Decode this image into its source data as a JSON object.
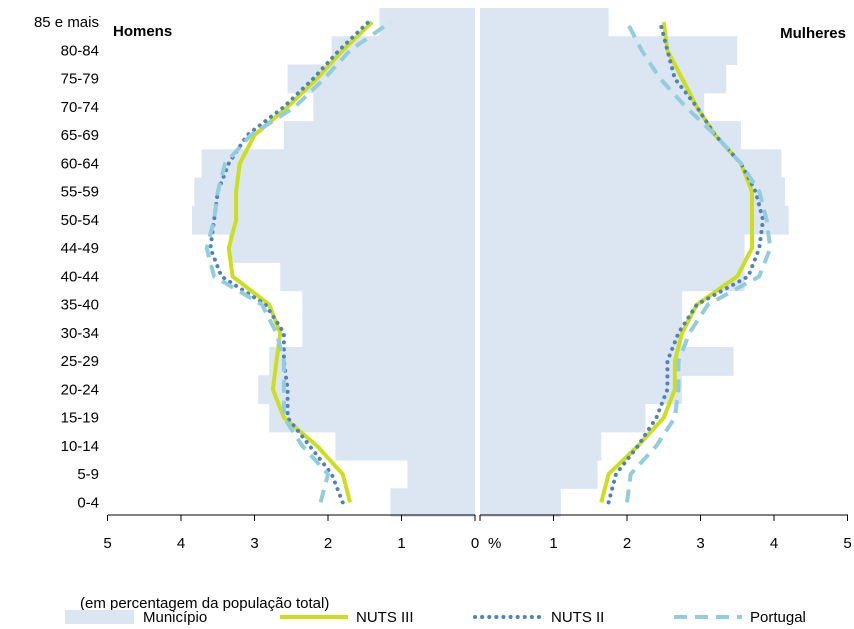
{
  "chart_data": {
    "type": "population-pyramid",
    "age_groups": [
      "0-4",
      "5-9",
      "10-14",
      "15-19",
      "20-24",
      "25-29",
      "30-34",
      "35-40",
      "40-44",
      "44-49",
      "50-54",
      "55-59",
      "60-64",
      "65-69",
      "70-74",
      "75-79",
      "80-84",
      "85 e mais"
    ],
    "panels": {
      "left_title": "Homens",
      "right_title": "Mulheres"
    },
    "x_ticks_left": [
      "5",
      "4",
      "3",
      "2",
      "1",
      "0"
    ],
    "x_ticks_right": [
      "1",
      "2",
      "3",
      "4",
      "5"
    ],
    "x_unit_label": "%",
    "x_note": "(em percentagem da população total)",
    "xlim": [
      0,
      5
    ],
    "series": [
      {
        "name": "Município",
        "style": "bar",
        "color": "#dce6f2",
        "men": [
          1.15,
          0.92,
          1.9,
          2.8,
          2.95,
          2.8,
          2.35,
          2.35,
          2.65,
          3.35,
          3.85,
          3.82,
          3.72,
          2.6,
          2.2,
          2.55,
          1.95,
          1.3
        ],
        "women": [
          1.1,
          1.6,
          1.65,
          2.25,
          2.75,
          3.45,
          2.75,
          2.75,
          3.6,
          3.6,
          4.2,
          4.15,
          4.1,
          3.55,
          3.05,
          3.35,
          3.5,
          1.75
        ]
      },
      {
        "name": "NUTS III",
        "style": "solid",
        "color": "#ccdf1c",
        "men": [
          1.7,
          1.8,
          2.15,
          2.6,
          2.75,
          2.7,
          2.65,
          2.8,
          3.3,
          3.35,
          3.25,
          3.25,
          3.2,
          3.0,
          2.55,
          2.15,
          1.8,
          1.4
        ],
        "women": [
          1.65,
          1.75,
          2.15,
          2.5,
          2.65,
          2.65,
          2.75,
          2.95,
          3.5,
          3.7,
          3.7,
          3.7,
          3.55,
          3.2,
          2.95,
          2.75,
          2.55,
          2.5
        ]
      },
      {
        "name": "NUTS II",
        "style": "dotted",
        "color": "#4f81bd",
        "men": [
          1.8,
          1.95,
          2.25,
          2.55,
          2.55,
          2.6,
          2.6,
          2.85,
          3.45,
          3.6,
          3.55,
          3.5,
          3.35,
          3.1,
          2.6,
          2.2,
          1.85,
          1.45
        ],
        "women": [
          1.75,
          1.85,
          2.15,
          2.4,
          2.55,
          2.55,
          2.7,
          2.95,
          3.65,
          3.8,
          3.85,
          3.75,
          3.55,
          3.2,
          2.95,
          2.65,
          2.55,
          2.45
        ]
      },
      {
        "name": "Portugal",
        "style": "dashed",
        "color": "#93cddd",
        "men": [
          2.1,
          2.0,
          2.35,
          2.6,
          2.6,
          2.6,
          2.7,
          2.9,
          3.55,
          3.65,
          3.55,
          3.5,
          3.4,
          3.05,
          2.45,
          2.05,
          1.7,
          1.15
        ],
        "women": [
          2.0,
          2.05,
          2.4,
          2.65,
          2.7,
          2.7,
          2.85,
          3.1,
          3.8,
          3.95,
          3.9,
          3.8,
          3.55,
          3.2,
          2.8,
          2.45,
          2.2,
          2.0
        ]
      }
    ]
  }
}
